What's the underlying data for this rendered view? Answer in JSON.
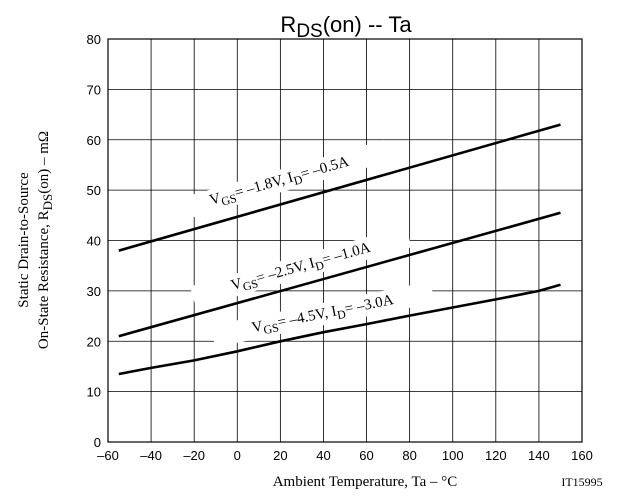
{
  "chart_data": {
    "type": "line",
    "title": {
      "main": "R",
      "sub": "DS",
      "rest": "(on)  --  Ta"
    },
    "xlabel": "Ambient Temperature, Ta  –  °C",
    "ylabel": {
      "line1": "Static Drain-to-Source",
      "line2_pre": "On-State Resistance, R",
      "line2_sub": "DS",
      "line2_post": "(on)  –  mΩ"
    },
    "code": "IT15995",
    "xlim": [
      -60,
      160
    ],
    "ylim": [
      0,
      80
    ],
    "x_ticks": [
      "–60",
      "–40",
      "–20",
      "0",
      "20",
      "40",
      "60",
      "80",
      "100",
      "120",
      "140",
      "160"
    ],
    "y_ticks": [
      "0",
      "10",
      "20",
      "30",
      "40",
      "50",
      "60",
      "70",
      "80"
    ],
    "grid": true,
    "series": [
      {
        "label": {
          "v": "V",
          "vsub": "GS",
          "mid": "= –1.8V, I",
          "isub": "D",
          "end": "= –0.5A"
        },
        "x": [
          -55,
          150
        ],
        "y": [
          38,
          63
        ]
      },
      {
        "label": {
          "v": "V",
          "vsub": "GS",
          "mid": "= –2.5V, I",
          "isub": "D",
          "end": "= –1.0A"
        },
        "x": [
          -55,
          150
        ],
        "y": [
          21,
          45.5
        ]
      },
      {
        "label": {
          "v": "V",
          "vsub": "GS",
          "mid": "= –4.5V, I",
          "isub": "D",
          "end": "= –3.0A"
        },
        "x": [
          -55,
          -40,
          -20,
          0,
          20,
          40,
          60,
          80,
          100,
          120,
          140,
          150
        ],
        "y": [
          13.5,
          14.7,
          16.2,
          18,
          20,
          21.8,
          23.4,
          25.1,
          26.7,
          28.3,
          30,
          31.2
        ]
      }
    ]
  }
}
